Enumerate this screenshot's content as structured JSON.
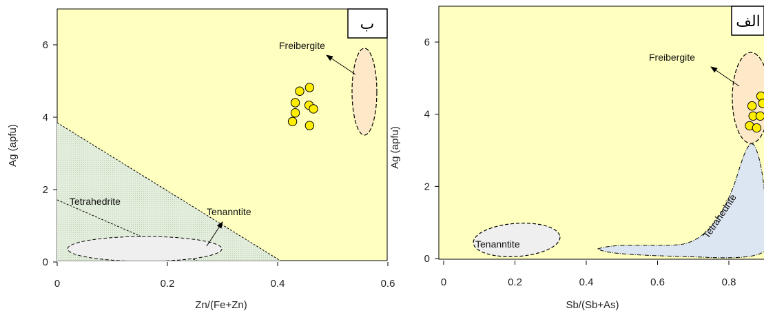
{
  "chart_data": [
    {
      "type": "scatter",
      "panel_label": "ب",
      "xlabel": "Zn/(Fe+Zn)",
      "ylabel": "Ag (apfu)",
      "xlim": [
        0,
        0.6
      ],
      "ylim": [
        0,
        7
      ],
      "xticks": [
        "0",
        "0.2",
        "0.4",
        "0.6"
      ],
      "yticks": [
        "0",
        "2",
        "4",
        "6"
      ],
      "grid": false,
      "colors": {
        "plot_bg": "#ffffc0",
        "points": "#ffee00",
        "freibergite": "#fde9c8",
        "tetrahedrite": "#e3eedc",
        "tenanntite": "#efefef"
      },
      "points": [
        {
          "x": 0.427,
          "y": 3.88
        },
        {
          "x": 0.432,
          "y": 4.12
        },
        {
          "x": 0.432,
          "y": 4.4
        },
        {
          "x": 0.44,
          "y": 4.72
        },
        {
          "x": 0.458,
          "y": 4.82
        },
        {
          "x": 0.457,
          "y": 4.33
        },
        {
          "x": 0.465,
          "y": 4.23
        },
        {
          "x": 0.458,
          "y": 3.77
        }
      ],
      "regions": [
        {
          "label": "Freibergite"
        },
        {
          "label": "Tetrahedrite"
        },
        {
          "label": "Tenanntite"
        }
      ]
    },
    {
      "type": "scatter",
      "panel_label": "الف",
      "xlabel": "Sb/(Sb+As)",
      "ylabel": "Ag (apfu)",
      "xlim": [
        0,
        0.9
      ],
      "ylim": [
        0,
        6.9
      ],
      "xticks": [
        "0",
        "0.2",
        "0.4",
        "0.6",
        "0.8"
      ],
      "yticks": [
        "0",
        "2",
        "4",
        "6"
      ],
      "grid": false,
      "colors": {
        "plot_bg": "#ffffc0",
        "points": "#ffee00",
        "freibergite": "#fde9c8",
        "tetrahedrite": "#dce6f2",
        "tenanntite": "#efefef"
      },
      "points": [
        {
          "x": 0.858,
          "y": 3.68
        },
        {
          "x": 0.878,
          "y": 3.62
        },
        {
          "x": 0.868,
          "y": 3.95
        },
        {
          "x": 0.865,
          "y": 4.23
        },
        {
          "x": 0.89,
          "y": 4.5
        },
        {
          "x": 0.888,
          "y": 3.95
        },
        {
          "x": 0.895,
          "y": 4.3
        }
      ],
      "regions": [
        {
          "label": "Freibergite"
        },
        {
          "label": "Tetrahedrite"
        },
        {
          "label": "Tenanntite"
        }
      ]
    }
  ]
}
